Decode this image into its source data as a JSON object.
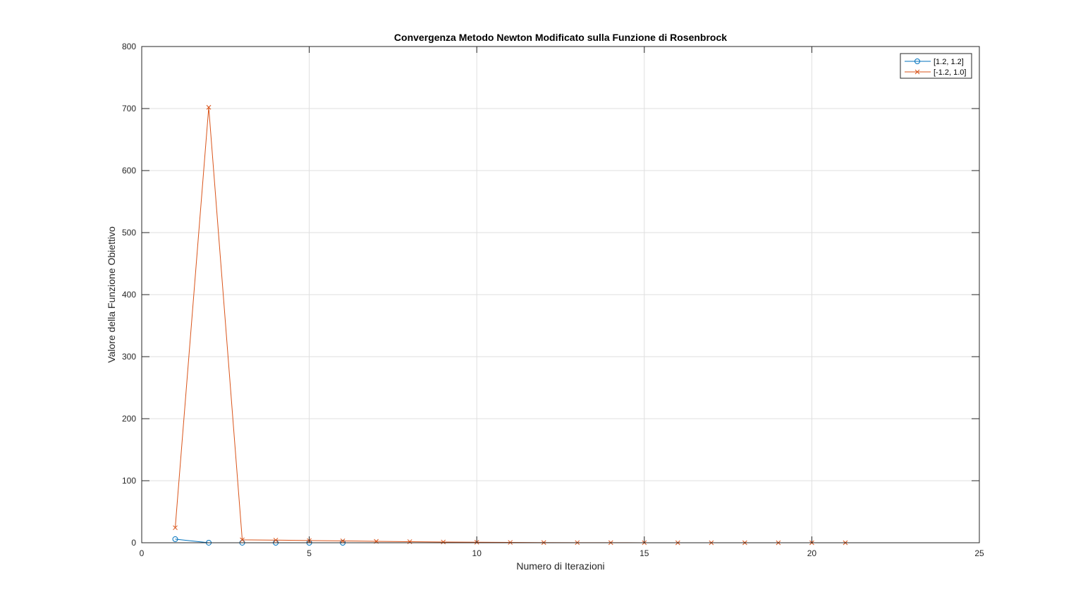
{
  "chart_data": {
    "type": "line",
    "title": "Convergenza Metodo Newton Modificato sulla Funzione di Rosenbrock",
    "xlabel": "Numero di Iterazioni",
    "ylabel": "Valore della Funzione Obiettivo",
    "xlim": [
      0,
      25
    ],
    "ylim": [
      0,
      800
    ],
    "xticks": [
      0,
      5,
      10,
      15,
      20,
      25
    ],
    "yticks": [
      0,
      100,
      200,
      300,
      400,
      500,
      600,
      700,
      800
    ],
    "grid": true,
    "legend_position": "top-right",
    "series": [
      {
        "name": "[1.2, 1.2]",
        "color": "#0072BD",
        "marker": "circle",
        "x": [
          1,
          2,
          3,
          4,
          5,
          6
        ],
        "y": [
          5.8,
          0.04,
          0.02,
          0.01,
          0.005,
          0.001
        ]
      },
      {
        "name": "[-1.2, 1.0]",
        "color": "#D95319",
        "marker": "cross",
        "x": [
          1,
          2,
          3,
          4,
          5,
          6,
          7,
          8,
          9,
          10,
          11,
          12,
          13,
          14,
          15,
          16,
          17,
          18,
          19,
          20,
          21
        ],
        "y": [
          24.2,
          702,
          4.7,
          4.2,
          3.5,
          3.0,
          2.3,
          1.7,
          1.2,
          0.8,
          0.5,
          0.3,
          0.2,
          0.12,
          0.07,
          0.04,
          0.02,
          0.01,
          0.005,
          0.001,
          0.0
        ]
      }
    ]
  }
}
